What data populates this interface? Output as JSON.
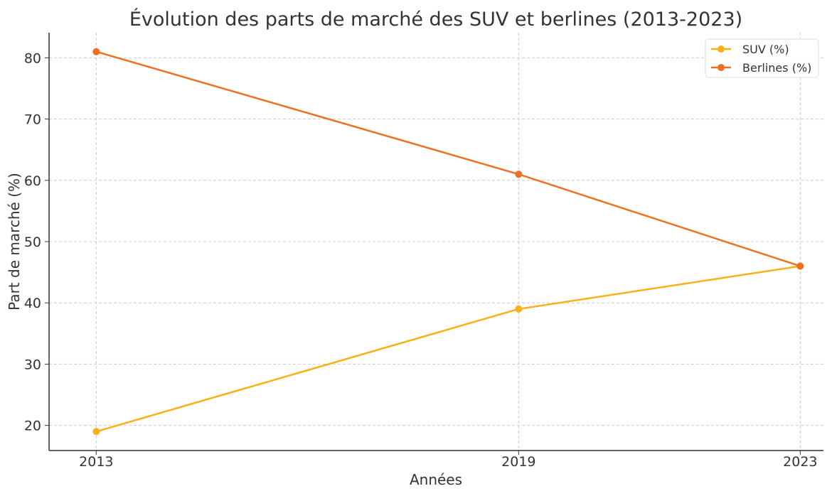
{
  "chart_data": {
    "type": "line",
    "title": "Évolution des parts de marché des SUV et berlines (2013-2023)",
    "xlabel": "Années",
    "ylabel": "Part de marché (%)",
    "x": [
      2013,
      2019,
      2023
    ],
    "x_tick_labels": [
      "2013",
      "2019",
      "2023"
    ],
    "xlim": [
      2012.33,
      2023.33
    ],
    "ylim": [
      15.9,
      84.1
    ],
    "y_ticks": [
      20,
      30,
      40,
      50,
      60,
      70,
      80
    ],
    "y_tick_labels": [
      "20",
      "30",
      "40",
      "50",
      "60",
      "70",
      "80"
    ],
    "grid": true,
    "legend_position": "top-right",
    "series": [
      {
        "name": "SUV (%)",
        "values": [
          19,
          39,
          46
        ],
        "color": "#F9B116",
        "marker": "circle"
      },
      {
        "name": "Berlines (%)",
        "values": [
          81,
          61,
          46
        ],
        "color": "#F06F25",
        "marker": "circle"
      }
    ]
  }
}
